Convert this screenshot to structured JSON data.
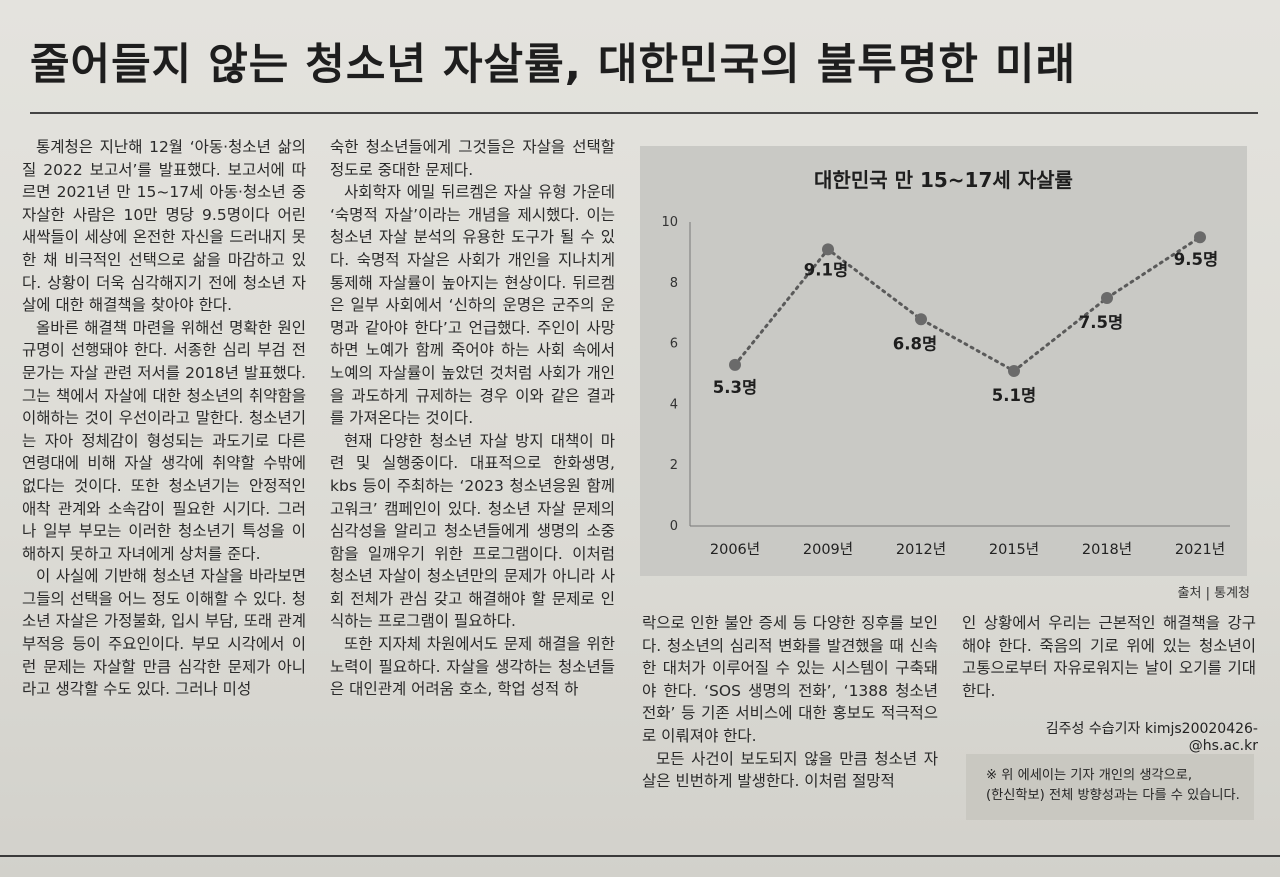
{
  "headline": "줄어들지 않는 청소년 자살률, 대한민국의 불투명한 미래",
  "column1": [
    "통계청은 지난해 12월 ‘아동·청소년 삶의 질 2022 보고서’를 발표했다. 보고서에 따르면 2021년 만 15~17세 아동·청소년 중 자살한 사람은 10만 명당 9.5명이다 어린 새싹들이 세상에 온전한 자신을 드러내지 못한 채 비극적인 선택으로 삶을 마감하고 있다. 상황이 더욱 심각해지기 전에 청소년 자살에 대한 해결책을 찾아야 한다.",
    "올바른 해결책 마련을 위해선 명확한 원인 규명이 선행돼야 한다. 서종한 심리 부검 전문가는 자살 관련 저서를 2018년 발표했다. 그는 책에서 자살에 대한 청소년의 취약함을 이해하는 것이 우선이라고 말한다. 청소년기는 자아 정체감이 형성되는 과도기로 다른 연령대에 비해 자살 생각에 취약할 수밖에 없다는 것이다. 또한 청소년기는 안정적인 애착 관계와 소속감이 필요한 시기다. 그러나 일부 부모는 이러한 청소년기 특성을 이해하지 못하고 자녀에게 상처를 준다.",
    "이 사실에 기반해 청소년 자살을 바라보면 그들의 선택을 어느 정도 이해할 수 있다. 청소년 자살은 가정불화, 입시 부담, 또래 관계 부적응 등이 주요인이다. 부모 시각에서 이런 문제는 자살할 만큼 심각한 문제가 아니라고 생각할 수도 있다. 그러나 미성"
  ],
  "column2": [
    "숙한 청소년들에게 그것들은 자살을 선택할 정도로 중대한 문제다.",
    "사회학자 에밀 뒤르켐은 자살 유형 가운데 ‘숙명적 자살’이라는 개념을 제시했다. 이는 청소년 자살 분석의 유용한 도구가 될 수 있다. 숙명적 자살은 사회가 개인을 지나치게 통제해 자살률이 높아지는 현상이다. 뒤르켐은 일부 사회에서 ‘신하의 운명은 군주의 운명과 같아야 한다’고 언급했다. 주인이 사망하면 노예가 함께 죽어야 하는 사회 속에서 노예의 자살률이 높았던 것처럼 사회가 개인을 과도하게 규제하는 경우 이와 같은 결과를 가져온다는 것이다.",
    "현재 다양한 청소년 자살 방지 대책이 마련 및 실행중이다. 대표적으로 한화생명, kbs 등이 주최하는 ‘2023 청소년응원 함께고워크’ 캠페인이 있다. 청소년 자살 문제의 심각성을 알리고 청소년들에게 생명의 소중함을 일깨우기 위한 프로그램이다. 이처럼 청소년 자살이 청소년만의 문제가 아니라 사회 전체가 관심 갖고 해결해야 할 문제로 인식하는 프로그램이 필요하다.",
    "또한 지자체 차원에서도 문제 해결을 위한 노력이 필요하다. 자살을 생각하는 청소년들은 대인관계 어려움 호소, 학업 성적 하"
  ],
  "column3": [
    "락으로 인한 불안 증세 등 다양한 징후를 보인다. 청소년의 심리적 변화를 발견했을 때 신속한 대처가 이루어질 수 있는 시스템이 구축돼야 한다. ‘SOS 생명의 전화’, ‘1388 청소년 전화’ 등 기존 서비스에 대한 홍보도 적극적으로 이뤄져야 한다.",
    "모든 사건이 보도되지 않을 만큼 청소년 자살은 빈번하게 발생한다. 이처럼 절망적"
  ],
  "column4": [
    "인 상황에서 우리는 근본적인 해결책을 강구해야 한다. 죽음의 기로 위에 있는 청소년이 고통으로부터 자유로워지는 날이 오기를 기대한다."
  ],
  "byline": "김주성 수습기자 kimjs20020426-@hs.ac.kr",
  "note": {
    "line1": "※ 위 에세이는 기자 개인의 생각으로,",
    "line2": "(한신학보) 전체 방향성과는 다를 수 있습니다."
  },
  "source": "출처 | 통계청",
  "chart_data": {
    "type": "line",
    "title": "대한민국 만 15~17세 자살률",
    "categories": [
      "2006년",
      "2009년",
      "2012년",
      "2015년",
      "2018년",
      "2021년"
    ],
    "values": [
      5.3,
      9.1,
      6.8,
      5.1,
      7.5,
      9.5
    ],
    "data_labels": [
      "5.3명",
      "9.1명",
      "6.8명",
      "5.1명",
      "7.5명",
      "9.5명"
    ],
    "yticks": [
      "0",
      "2",
      "4",
      "6",
      "8",
      "10"
    ],
    "ylim": [
      0,
      10
    ],
    "line_style": "dotted",
    "grid": false,
    "colors": {
      "line": "#5a5a5a",
      "marker": "#6a6a6a",
      "axis": "#777777",
      "background": "#c9c9c5"
    }
  }
}
